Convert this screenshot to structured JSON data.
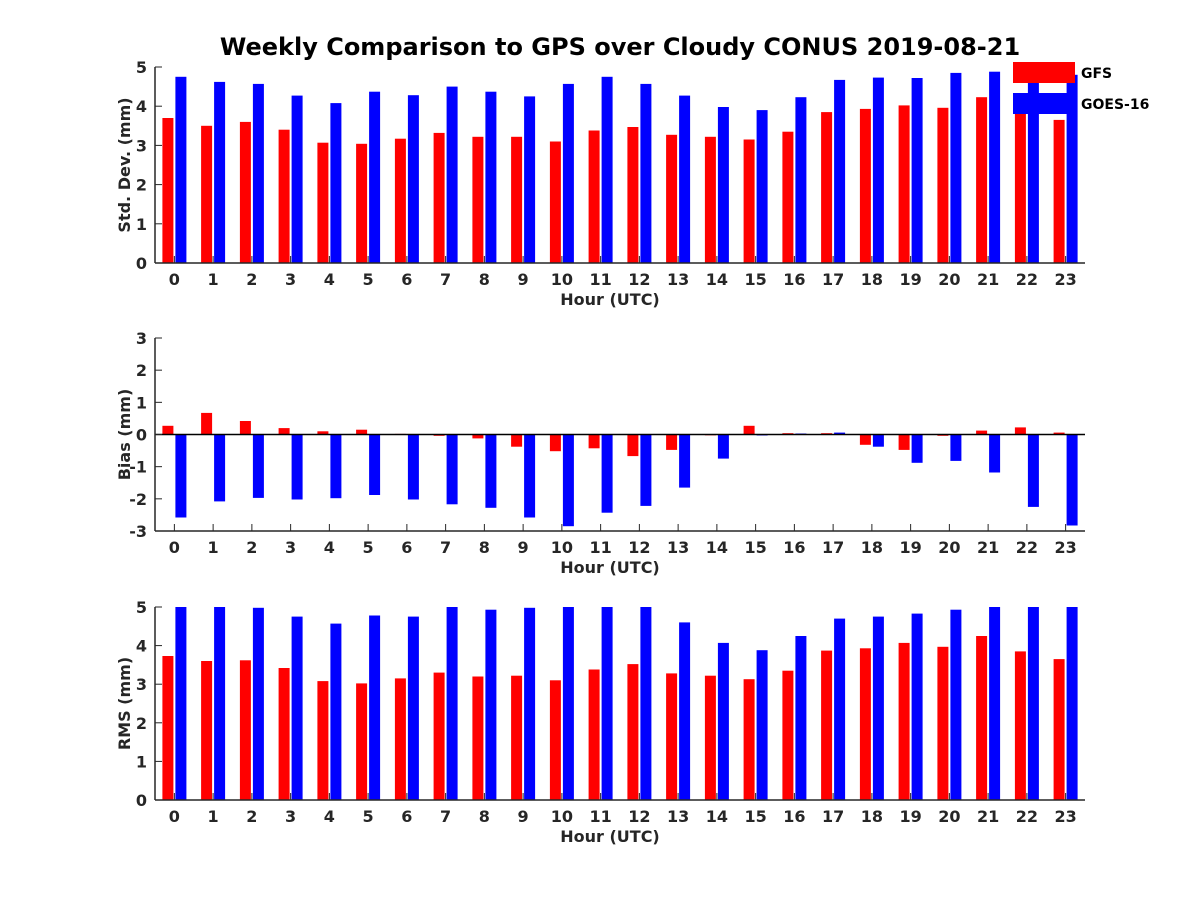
{
  "title": "Weekly Comparison to GPS over Cloudy CONUS 2019-08-21",
  "colors": {
    "GFS": "#ff0000",
    "GOES-16": "#0000ff"
  },
  "legend": {
    "placement": "top-right",
    "items": [
      "GFS",
      "GOES-16"
    ]
  },
  "chart_data": [
    {
      "type": "bar",
      "categories": [
        "0",
        "1",
        "2",
        "3",
        "4",
        "5",
        "6",
        "7",
        "8",
        "9",
        "10",
        "11",
        "12",
        "13",
        "14",
        "15",
        "16",
        "17",
        "18",
        "19",
        "20",
        "21",
        "22",
        "23"
      ],
      "xlabel": "Hour (UTC)",
      "ylabel": "Std. Dev. (mm)",
      "ylim": [
        0,
        5
      ],
      "yticks": [
        0,
        1,
        2,
        3,
        4,
        5
      ],
      "series": [
        {
          "name": "GFS",
          "values": [
            3.7,
            3.5,
            3.6,
            3.4,
            3.07,
            3.04,
            3.17,
            3.32,
            3.22,
            3.22,
            3.1,
            3.38,
            3.47,
            3.27,
            3.22,
            3.15,
            3.35,
            3.85,
            3.93,
            4.02,
            3.96,
            4.23,
            3.83,
            3.65
          ]
        },
        {
          "name": "GOES-16",
          "values": [
            4.75,
            4.62,
            4.57,
            4.27,
            4.08,
            4.37,
            4.28,
            4.5,
            4.37,
            4.25,
            4.57,
            4.75,
            4.57,
            4.27,
            3.98,
            3.9,
            4.23,
            4.67,
            4.73,
            4.72,
            4.85,
            4.88,
            4.6,
            4.8
          ]
        }
      ]
    },
    {
      "type": "bar",
      "categories": [
        "0",
        "1",
        "2",
        "3",
        "4",
        "5",
        "6",
        "7",
        "8",
        "9",
        "10",
        "11",
        "12",
        "13",
        "14",
        "15",
        "16",
        "17",
        "18",
        "19",
        "20",
        "21",
        "22",
        "23"
      ],
      "xlabel": "Hour (UTC)",
      "ylabel": "Bias (mm)",
      "ylim": [
        -3,
        3
      ],
      "yticks": [
        -3,
        -2,
        -1,
        0,
        1,
        2,
        3
      ],
      "series": [
        {
          "name": "GFS",
          "values": [
            0.27,
            0.67,
            0.42,
            0.2,
            0.1,
            0.15,
            0.02,
            -0.04,
            -0.12,
            -0.38,
            -0.52,
            -0.43,
            -0.67,
            -0.48,
            -0.02,
            0.27,
            0.04,
            0.04,
            -0.32,
            -0.48,
            -0.04,
            0.12,
            0.22,
            0.06
          ]
        },
        {
          "name": "GOES-16",
          "values": [
            -2.58,
            -2.08,
            -1.97,
            -2.02,
            -1.98,
            -1.88,
            -2.02,
            -2.17,
            -2.28,
            -2.58,
            -2.85,
            -2.43,
            -2.22,
            -1.65,
            -0.75,
            -0.03,
            0.03,
            0.06,
            -0.38,
            -0.88,
            -0.82,
            -1.18,
            -2.25,
            -2.83
          ]
        }
      ]
    },
    {
      "type": "bar",
      "categories": [
        "0",
        "1",
        "2",
        "3",
        "4",
        "5",
        "6",
        "7",
        "8",
        "9",
        "10",
        "11",
        "12",
        "13",
        "14",
        "15",
        "16",
        "17",
        "18",
        "19",
        "20",
        "21",
        "22",
        "23"
      ],
      "xlabel": "Hour (UTC)",
      "ylabel": "RMS (mm)",
      "ylim": [
        0,
        5
      ],
      "yticks": [
        0,
        1,
        2,
        3,
        4,
        5
      ],
      "series": [
        {
          "name": "GFS",
          "values": [
            3.73,
            3.6,
            3.62,
            3.42,
            3.08,
            3.02,
            3.15,
            3.3,
            3.2,
            3.22,
            3.1,
            3.38,
            3.52,
            3.28,
            3.22,
            3.13,
            3.35,
            3.87,
            3.93,
            4.07,
            3.97,
            4.25,
            3.85,
            3.65
          ]
        },
        {
          "name": "GOES-16",
          "values": [
            5.0,
            5.0,
            4.98,
            4.75,
            4.57,
            4.78,
            4.75,
            5.0,
            4.93,
            4.98,
            5.0,
            5.0,
            5.0,
            4.6,
            4.07,
            3.88,
            4.25,
            4.7,
            4.75,
            4.83,
            4.93,
            5.0,
            5.0,
            5.0
          ]
        }
      ]
    }
  ]
}
